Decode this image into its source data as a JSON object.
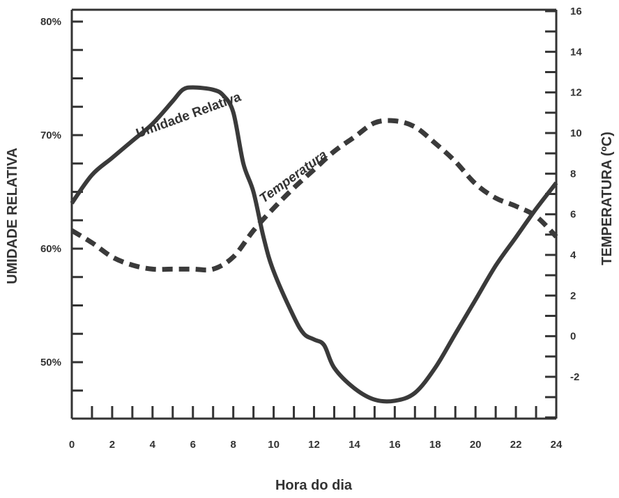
{
  "chart_data": {
    "type": "line",
    "title": "",
    "xlabel": "Hora do dia",
    "ylabel_left": "UMIDADE RELATIVA",
    "ylabel_right": "TEMPERATURA (ºC)",
    "x_ticks": [
      "0",
      "2",
      "4",
      "6",
      "8",
      "10",
      "12",
      "14",
      "16",
      "18",
      "20",
      "22",
      "24"
    ],
    "xlim": [
      0,
      24
    ],
    "y_left_ticks": [
      "80%",
      "70%",
      "60%",
      "50%"
    ],
    "y_left_tick_values": [
      80,
      70,
      60,
      50
    ],
    "y_left_lim": [
      45,
      81
    ],
    "y_right_ticks": [
      "16",
      "14",
      "12",
      "10",
      "8",
      "6",
      "4",
      "2",
      "0",
      "-2"
    ],
    "y_right_tick_values": [
      16,
      14,
      12,
      10,
      8,
      6,
      4,
      2,
      0,
      -2
    ],
    "y_right_lim": [
      -4.1,
      16.5
    ],
    "grid": false,
    "series": [
      {
        "name": "Umidade Relativa",
        "axis": "left",
        "style": "solid",
        "color": "#3a3a3a",
        "x": [
          0,
          1,
          2,
          3,
          4,
          5,
          5.5,
          6,
          7,
          7.5,
          8,
          8.5,
          9,
          9.5,
          10,
          11,
          11.5,
          12,
          12.5,
          13,
          14,
          15,
          16,
          17,
          18,
          19,
          20,
          21,
          22,
          23,
          24
        ],
        "y": [
          64,
          66.5,
          68,
          69.5,
          71,
          73,
          74,
          74.2,
          74,
          73.5,
          72,
          67.5,
          65,
          61,
          58,
          54,
          52.5,
          52,
          51.5,
          49.5,
          47.7,
          46.7,
          46.6,
          47.3,
          49.5,
          52.5,
          55.5,
          58.5,
          61,
          63.5,
          65.8
        ]
      },
      {
        "name": "Temperatura",
        "axis": "right",
        "style": "dashed",
        "color": "#3a3a3a",
        "x": [
          0,
          1,
          2,
          3,
          4,
          5,
          6,
          7,
          8,
          9,
          10,
          11,
          12,
          13,
          14,
          15,
          16,
          17,
          18,
          19,
          20,
          21,
          22,
          23,
          24
        ],
        "y": [
          5.2,
          4.6,
          3.9,
          3.5,
          3.3,
          3.3,
          3.3,
          3.3,
          3.9,
          5.2,
          6.3,
          7.3,
          8.2,
          9.1,
          9.8,
          10.5,
          10.6,
          10.3,
          9.5,
          8.6,
          7.5,
          6.8,
          6.4,
          5.9,
          4.9
        ]
      }
    ],
    "annotations": {
      "humidity_label": "Umidade Relativa",
      "temperature_label": "Temperatura"
    }
  }
}
